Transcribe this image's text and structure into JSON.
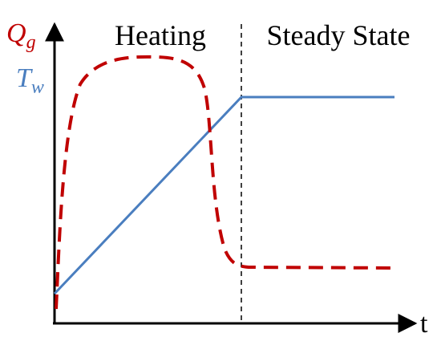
{
  "labels": {
    "q_symbol": "Q",
    "q_subscript": "g",
    "t_symbol": "T",
    "t_subscript": "w",
    "heating": "Heating",
    "steady_state": "Steady State",
    "time_axis": "t"
  }
}
